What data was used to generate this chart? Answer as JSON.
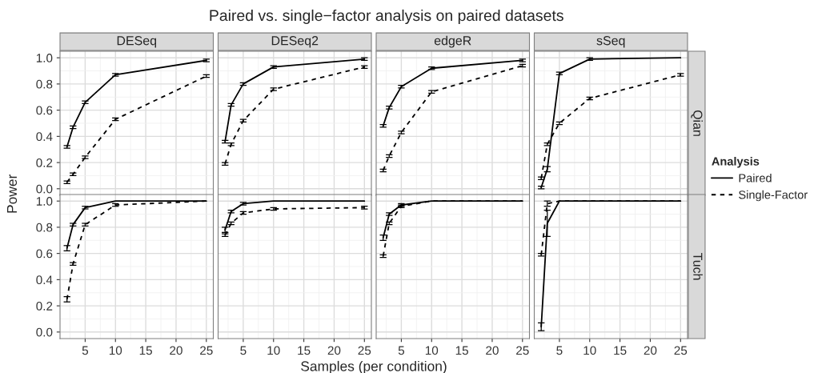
{
  "chart_data": [
    {
      "type": "line",
      "title": "DESeq",
      "annotations": [
        "Paired vs. single−factor analysis on paired datasets"
      ],
      "ylabel": "Power",
      "legend": "right",
      "legend_title": "Analysis",
      "x": [
        2,
        3,
        5,
        10,
        25
      ],
      "xlim": [
        0.85,
        26.15
      ],
      "xticks": [
        5,
        10,
        15,
        20,
        25
      ],
      "ylim": [
        -0.05,
        1.05
      ],
      "yticks": [
        {
          "value": 0,
          "label": "0.0"
        },
        {
          "value": 0.2,
          "label": "0.2"
        },
        {
          "value": 0.4,
          "label": "0.4"
        },
        {
          "value": 0.6,
          "label": "0.6"
        },
        {
          "value": 0.8,
          "label": "0.8"
        },
        {
          "value": 1,
          "label": "1.0"
        }
      ],
      "grid": true,
      "tick_labels": "y",
      "series": [
        {
          "name": "Paired",
          "color": "#000000",
          "line_style": "solid",
          "values": [
            0.32,
            0.47,
            0.66,
            0.87,
            0.98
          ],
          "errors": [
            0.01,
            0.01,
            0.01,
            0.01,
            0.01
          ]
        },
        {
          "name": "Single-Factor",
          "color": "#000000",
          "line_style": "dashed",
          "values": [
            0.05,
            0.11,
            0.24,
            0.53,
            0.86
          ],
          "errors": [
            0.01,
            0.01,
            0.01,
            0.01,
            0.01
          ]
        }
      ]
    },
    {
      "type": "line",
      "title": "DESeq2",
      "x": [
        2,
        3,
        5,
        10,
        25
      ],
      "xlim": [
        0.85,
        26.15
      ],
      "xticks": [
        5,
        10,
        15,
        20,
        25
      ],
      "ylim": [
        -0.05,
        1.05
      ],
      "yticks": [
        0,
        0.2,
        0.4,
        0.6,
        0.8,
        1
      ],
      "grid": true,
      "tick_labels": false,
      "series": [
        {
          "color": "#000000",
          "line_style": "solid",
          "values": [
            0.36,
            0.64,
            0.8,
            0.93,
            0.99
          ],
          "errors": [
            0.01,
            0.01,
            0.01,
            0.01,
            0.01
          ]
        },
        {
          "color": "#000000",
          "line_style": "dashed",
          "values": [
            0.19,
            0.34,
            0.52,
            0.76,
            0.93
          ],
          "errors": [
            0.01,
            0.01,
            0.01,
            0.01,
            0.01
          ]
        }
      ]
    },
    {
      "type": "line",
      "title": "edgeR",
      "x": [
        2,
        3,
        5,
        10,
        25
      ],
      "xlim": [
        0.85,
        26.15
      ],
      "xticks": [
        5,
        10,
        15,
        20,
        25
      ],
      "ylim": [
        -0.05,
        1.05
      ],
      "yticks": [
        0,
        0.2,
        0.4,
        0.6,
        0.8,
        1
      ],
      "grid": true,
      "tick_labels": false,
      "series": [
        {
          "color": "#000000",
          "line_style": "solid",
          "values": [
            0.48,
            0.62,
            0.78,
            0.92,
            0.98
          ],
          "errors": [
            0.01,
            0.01,
            0.01,
            0.01,
            0.01
          ]
        },
        {
          "color": "#000000",
          "line_style": "dashed",
          "values": [
            0.14,
            0.25,
            0.43,
            0.74,
            0.94
          ],
          "errors": [
            0.01,
            0.01,
            0.01,
            0.01,
            0.01
          ]
        }
      ]
    },
    {
      "type": "line",
      "title": "sSeq",
      "y2label": "Qian",
      "x": [
        2,
        3,
        5,
        10,
        25
      ],
      "xlim": [
        0.85,
        26.15
      ],
      "xticks": [
        5,
        10,
        15,
        20,
        25
      ],
      "ylim": [
        -0.05,
        1.05
      ],
      "yticks": [
        0,
        0.2,
        0.4,
        0.6,
        0.8,
        1
      ],
      "grid": true,
      "tick_labels": false,
      "series": [
        {
          "color": "#000000",
          "line_style": "solid",
          "values": [
            0.01,
            0.15,
            0.88,
            0.99,
            1.0
          ],
          "errors": [
            0.01,
            0.02,
            0.01,
            0.01,
            null
          ]
        },
        {
          "color": "#000000",
          "line_style": "dashed",
          "values": [
            0.08,
            0.34,
            0.5,
            0.69,
            0.87
          ],
          "errors": [
            0.01,
            0.01,
            0.01,
            0.01,
            0.01
          ]
        }
      ]
    },
    {
      "type": "line",
      "x": [
        2,
        3,
        5,
        10,
        25
      ],
      "xlim": [
        0.85,
        26.15
      ],
      "xticks": [
        5,
        10,
        15,
        20,
        25
      ],
      "ylim": [
        -0.05,
        1.05
      ],
      "yticks": [
        {
          "value": 0,
          "label": "0.0"
        },
        {
          "value": 0.2,
          "label": "0.2"
        },
        {
          "value": 0.4,
          "label": "0.4"
        },
        {
          "value": 0.6,
          "label": "0.6"
        },
        {
          "value": 0.8,
          "label": "0.8"
        },
        {
          "value": 1,
          "label": "1.0"
        }
      ],
      "grid": true,
      "series": [
        {
          "color": "#000000",
          "line_style": "solid",
          "values": [
            0.64,
            0.82,
            0.95,
            1.0,
            1.0
          ],
          "errors": [
            0.02,
            0.01,
            0.01,
            null,
            null
          ]
        },
        {
          "color": "#000000",
          "line_style": "dashed",
          "values": [
            0.25,
            0.52,
            0.82,
            0.97,
            1.0
          ],
          "errors": [
            0.02,
            0.01,
            0.01,
            0.01,
            null
          ]
        }
      ]
    },
    {
      "type": "line",
      "xlabel": "Samples (per condition)",
      "x": [
        2,
        3,
        5,
        10,
        25
      ],
      "xlim": [
        0.85,
        26.15
      ],
      "xticks": [
        5,
        10,
        15,
        20,
        25
      ],
      "ylim": [
        -0.05,
        1.05
      ],
      "yticks": [
        0,
        0.2,
        0.4,
        0.6,
        0.8,
        1
      ],
      "grid": true,
      "tick_labels": "x",
      "series": [
        {
          "color": "#000000",
          "line_style": "solid",
          "values": [
            0.78,
            0.92,
            0.98,
            1.0,
            1.0
          ],
          "errors": [
            0.02,
            0.01,
            0.01,
            null,
            null
          ]
        },
        {
          "color": "#000000",
          "line_style": "dashed",
          "values": [
            0.74,
            0.83,
            0.91,
            0.94,
            0.95
          ],
          "errors": [
            0.01,
            0.01,
            0.01,
            0.01,
            0.01
          ]
        }
      ]
    },
    {
      "type": "line",
      "x": [
        2,
        3,
        5,
        10,
        25
      ],
      "xlim": [
        0.85,
        26.15
      ],
      "xticks": [
        5,
        10,
        15,
        20,
        25
      ],
      "ylim": [
        -0.05,
        1.05
      ],
      "yticks": [
        0,
        0.2,
        0.4,
        0.6,
        0.8,
        1
      ],
      "grid": true,
      "tick_labels": "x",
      "series": [
        {
          "color": "#000000",
          "line_style": "solid",
          "values": [
            0.72,
            0.9,
            0.97,
            1.0,
            1.0
          ],
          "errors": [
            0.02,
            0.01,
            0.01,
            null,
            null
          ]
        },
        {
          "color": "#000000",
          "line_style": "dashed",
          "values": [
            0.58,
            0.83,
            0.96,
            1.0,
            1.0
          ],
          "errors": [
            0.01,
            0.01,
            0.01,
            null,
            null
          ]
        }
      ]
    },
    {
      "type": "line",
      "y2label": "Tuch",
      "x": [
        2,
        3,
        5,
        10,
        25
      ],
      "xlim": [
        0.85,
        26.15
      ],
      "xticks": [
        5,
        10,
        15,
        20,
        25
      ],
      "ylim": [
        -0.05,
        1.05
      ],
      "yticks": [
        0,
        0.2,
        0.4,
        0.6,
        0.8,
        1
      ],
      "grid": true,
      "tick_labels": "x",
      "series": [
        {
          "color": "#000000",
          "line_style": "solid",
          "values": [
            0.04,
            0.83,
            1.0,
            1.0,
            1.0
          ],
          "errors": [
            0.03,
            0.1,
            null,
            null,
            null
          ]
        },
        {
          "color": "#000000",
          "line_style": "dashed",
          "values": [
            0.59,
            0.98,
            1.0,
            1.0,
            1.0
          ],
          "errors": [
            0.01,
            0.02,
            null,
            null,
            null
          ]
        }
      ]
    }
  ]
}
